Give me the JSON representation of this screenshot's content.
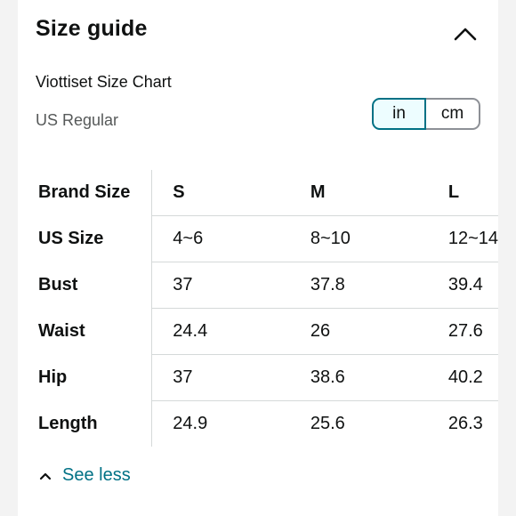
{
  "header": {
    "title": "Size guide",
    "collapse_icon": "chevron-up-icon"
  },
  "chart": {
    "name": "Viottiset Size Chart",
    "region": "US Regular"
  },
  "units": {
    "options": [
      "in",
      "cm"
    ],
    "selected": "in",
    "accent_color": "#007185"
  },
  "table": {
    "rows": [
      {
        "label": "Brand Size",
        "values": [
          "S",
          "M",
          "L"
        ]
      },
      {
        "label": "US Size",
        "values": [
          "4~6",
          "8~10",
          "12~14"
        ]
      },
      {
        "label": "Bust",
        "values": [
          "37",
          "37.8",
          "39.4"
        ]
      },
      {
        "label": "Waist",
        "values": [
          "24.4",
          "26",
          "27.6"
        ]
      },
      {
        "label": "Hip",
        "values": [
          "37",
          "38.6",
          "40.2"
        ]
      },
      {
        "label": "Length",
        "values": [
          "24.9",
          "25.6",
          "26.3"
        ]
      }
    ]
  },
  "footer": {
    "see_less_label": "See less",
    "see_less_icon": "chevron-up-icon"
  }
}
